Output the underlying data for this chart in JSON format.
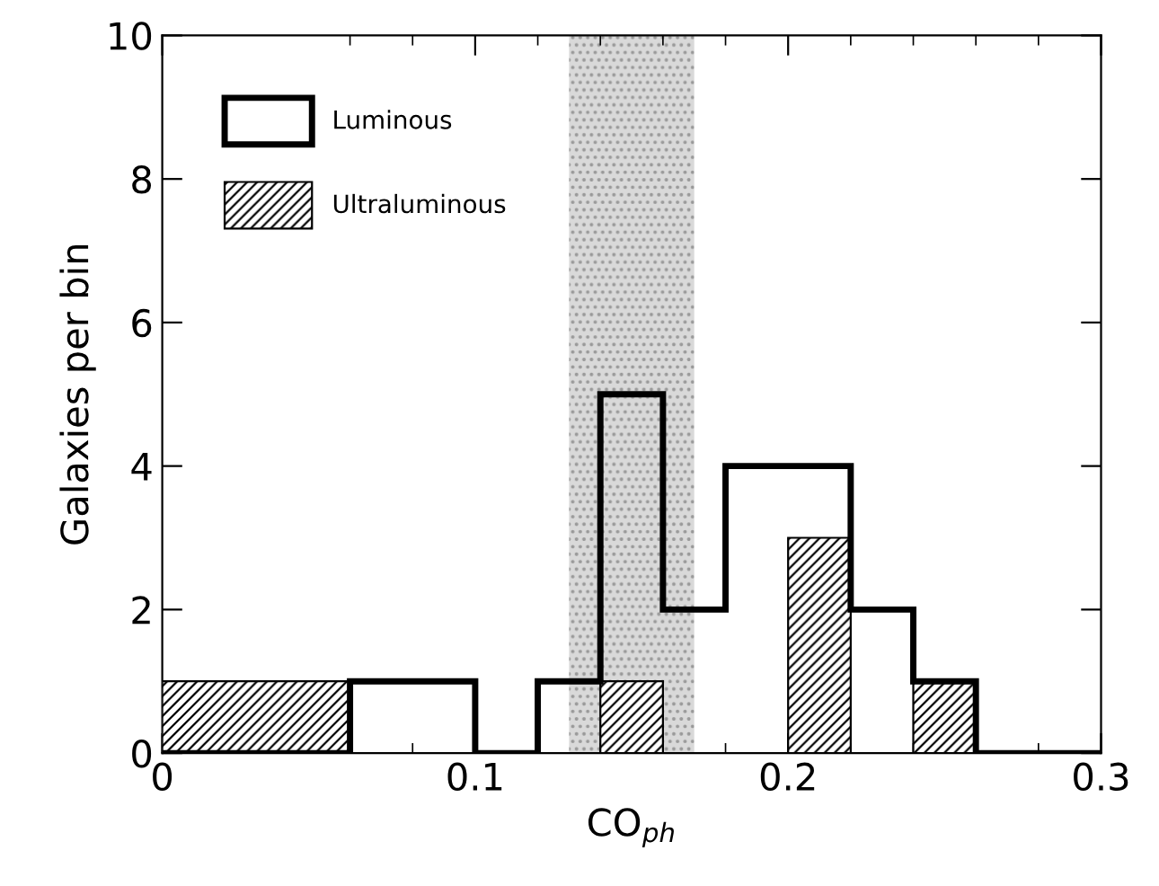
{
  "chart_data": {
    "type": "histogram",
    "xlabel": "CO$_{ph}$",
    "ylabel": "Galaxies per bin",
    "bins": [
      0,
      0.06,
      0.08,
      0.1,
      0.12,
      0.14,
      0.16,
      0.18,
      0.2,
      0.22,
      0.24,
      0.26,
      0.28,
      0.3
    ],
    "series": [
      {
        "name": "Luminous",
        "color": "#000000",
        "type": "step",
        "x": [
          0,
          0.06,
          0.08,
          0.1,
          0.12,
          0.14,
          0.16,
          0.18,
          0.2,
          0.22,
          0.24,
          0.26,
          0.28,
          0.3
        ],
        "values": [
          0,
          1,
          1,
          0,
          1,
          5,
          2,
          4,
          4,
          2,
          1,
          0,
          0,
          0
        ]
      },
      {
        "name": "Ultraluminous",
        "color": "#000000",
        "values": [
          1,
          0,
          0,
          0,
          0,
          1,
          0,
          0,
          3,
          0,
          1,
          0,
          0
        ]
      }
    ],
    "bands": [
      {
        "axis": "x",
        "from": 0.13,
        "to": 0.17,
        "color": "#d9d9d9"
      }
    ],
    "xlim": [
      0,
      0.3
    ],
    "ylim": [
      0,
      10
    ],
    "xticks": [
      0,
      0.1,
      0.2,
      0.3
    ],
    "yticks": [
      0,
      2,
      4,
      6,
      8,
      10
    ],
    "legend": "top left",
    "grid": false
  }
}
